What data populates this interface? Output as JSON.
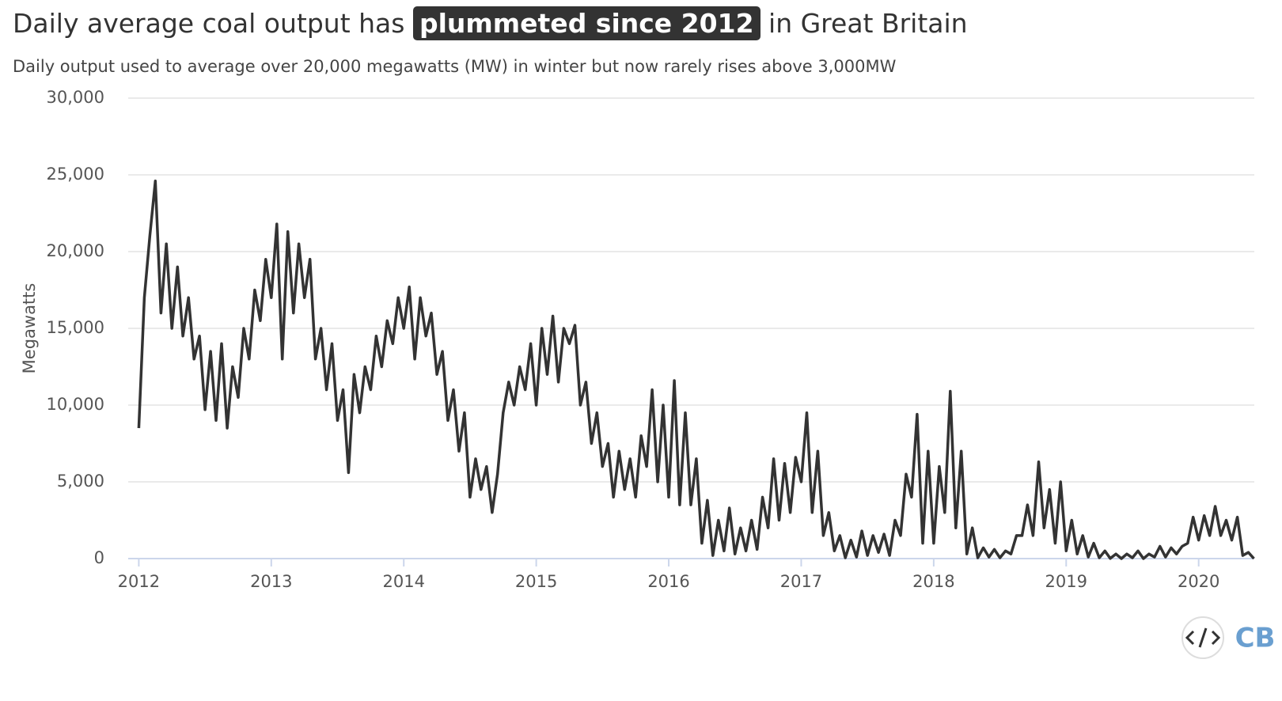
{
  "chart_data": {
    "type": "line",
    "title_parts": [
      "Daily average coal output has",
      "plummeted since 2012",
      "in Great Britain"
    ],
    "subtitle": "Daily output used to average over 20,000 megawatts (MW) in winter but now rarely rises above 3,000MW",
    "ylabel": "Megawatts",
    "logo": "CB",
    "xlim": [
      2011.92,
      2020.42
    ],
    "xticks": [
      2012,
      2013,
      2014,
      2015,
      2016,
      2017,
      2018,
      2019,
      2020
    ],
    "ylim": [
      0,
      30000
    ],
    "yticks": [
      0,
      {
        "value": 5000,
        "label": "5,000"
      },
      {
        "value": 10000,
        "label": "10,000"
      },
      {
        "value": 15000,
        "label": "15,000"
      },
      {
        "value": 20000,
        "label": "20,000"
      },
      {
        "value": 25000,
        "label": "25,000"
      },
      {
        "value": 30000,
        "label": "30,000"
      }
    ],
    "grid": true,
    "series": [
      {
        "name": "Megawatts",
        "color": "#333333",
        "x": [
          2012.0,
          2012.042,
          2012.083,
          2012.125,
          2012.167,
          2012.208,
          2012.25,
          2012.292,
          2012.333,
          2012.375,
          2012.417,
          2012.458,
          2012.5,
          2012.542,
          2012.583,
          2012.625,
          2012.667,
          2012.708,
          2012.75,
          2012.792,
          2012.833,
          2012.875,
          2012.917,
          2012.958,
          2013.0,
          2013.042,
          2013.083,
          2013.125,
          2013.167,
          2013.208,
          2013.25,
          2013.292,
          2013.333,
          2013.375,
          2013.417,
          2013.458,
          2013.5,
          2013.542,
          2013.583,
          2013.625,
          2013.667,
          2013.708,
          2013.75,
          2013.792,
          2013.833,
          2013.875,
          2013.917,
          2013.958,
          2014.0,
          2014.042,
          2014.083,
          2014.125,
          2014.167,
          2014.208,
          2014.25,
          2014.292,
          2014.333,
          2014.375,
          2014.417,
          2014.458,
          2014.5,
          2014.542,
          2014.583,
          2014.625,
          2014.667,
          2014.708,
          2014.75,
          2014.792,
          2014.833,
          2014.875,
          2014.917,
          2014.958,
          2015.0,
          2015.042,
          2015.083,
          2015.125,
          2015.167,
          2015.208,
          2015.25,
          2015.292,
          2015.333,
          2015.375,
          2015.417,
          2015.458,
          2015.5,
          2015.542,
          2015.583,
          2015.625,
          2015.667,
          2015.708,
          2015.75,
          2015.792,
          2015.833,
          2015.875,
          2015.917,
          2015.958,
          2016.0,
          2016.042,
          2016.083,
          2016.125,
          2016.167,
          2016.208,
          2016.25,
          2016.292,
          2016.333,
          2016.375,
          2016.417,
          2016.458,
          2016.5,
          2016.542,
          2016.583,
          2016.625,
          2016.667,
          2016.708,
          2016.75,
          2016.792,
          2016.833,
          2016.875,
          2016.917,
          2016.958,
          2017.0,
          2017.042,
          2017.083,
          2017.125,
          2017.167,
          2017.208,
          2017.25,
          2017.292,
          2017.333,
          2017.375,
          2017.417,
          2017.458,
          2017.5,
          2017.542,
          2017.583,
          2017.625,
          2017.667,
          2017.708,
          2017.75,
          2017.792,
          2017.833,
          2017.875,
          2017.917,
          2017.958,
          2018.0,
          2018.042,
          2018.083,
          2018.125,
          2018.167,
          2018.208,
          2018.25,
          2018.292,
          2018.333,
          2018.375,
          2018.417,
          2018.458,
          2018.5,
          2018.542,
          2018.583,
          2018.625,
          2018.667,
          2018.708,
          2018.75,
          2018.792,
          2018.833,
          2018.875,
          2018.917,
          2018.958,
          2019.0,
          2019.042,
          2019.083,
          2019.125,
          2019.167,
          2019.208,
          2019.25,
          2019.292,
          2019.333,
          2019.375,
          2019.417,
          2019.458,
          2019.5,
          2019.542,
          2019.583,
          2019.625,
          2019.667,
          2019.708,
          2019.75,
          2019.792,
          2019.833,
          2019.875,
          2019.917,
          2019.958,
          2020.0,
          2020.042,
          2020.083,
          2020.125,
          2020.167,
          2020.208,
          2020.25,
          2020.292,
          2020.333,
          2020.375,
          2020.417
        ],
        "values": [
          8500,
          17000,
          21000,
          24600,
          16000,
          20500,
          15000,
          19000,
          14500,
          17000,
          13000,
          14500,
          9700,
          13500,
          9000,
          14000,
          8500,
          12500,
          10500,
          15000,
          13000,
          17500,
          15500,
          19500,
          17000,
          21800,
          13000,
          21300,
          16000,
          20500,
          17000,
          19500,
          13000,
          15000,
          11000,
          14000,
          9000,
          11000,
          5600,
          12000,
          9500,
          12500,
          11000,
          14500,
          12500,
          15500,
          14000,
          17000,
          15000,
          17700,
          13000,
          17000,
          14500,
          16000,
          12000,
          13500,
          9000,
          11000,
          7000,
          9500,
          4000,
          6500,
          4500,
          6000,
          3000,
          5500,
          9500,
          11500,
          10000,
          12500,
          11000,
          14000,
          10000,
          15000,
          12000,
          15800,
          11500,
          15000,
          14000,
          15200,
          10000,
          11500,
          7500,
          9500,
          6000,
          7500,
          4000,
          7000,
          4500,
          6500,
          4000,
          8000,
          6000,
          11000,
          5000,
          10000,
          4000,
          11600,
          3500,
          9500,
          3500,
          6500,
          1000,
          3800,
          200,
          2500,
          500,
          3300,
          300,
          2000,
          500,
          2500,
          600,
          4000,
          2000,
          6500,
          2500,
          6200,
          3000,
          6600,
          5000,
          9500,
          3000,
          7000,
          1500,
          3000,
          500,
          1500,
          50,
          1200,
          100,
          1800,
          200,
          1500,
          400,
          1600,
          200,
          2500,
          1500,
          5500,
          4000,
          9400,
          1000,
          7000,
          1000,
          6000,
          3000,
          10900,
          2000,
          7000,
          300,
          2000,
          50,
          700,
          100,
          600,
          50,
          500,
          300,
          1500,
          1500,
          3500,
          1500,
          6300,
          2000,
          4500,
          1000,
          5000,
          500,
          2500,
          300,
          1500,
          100,
          1000,
          50,
          500,
          10,
          300,
          0,
          300,
          50,
          500,
          0,
          300,
          100,
          800,
          100,
          700,
          300,
          800,
          1000,
          2700,
          1200,
          2800,
          1500,
          3400,
          1500,
          2500,
          1200,
          2700,
          200,
          400,
          0
        ]
      }
    ]
  }
}
